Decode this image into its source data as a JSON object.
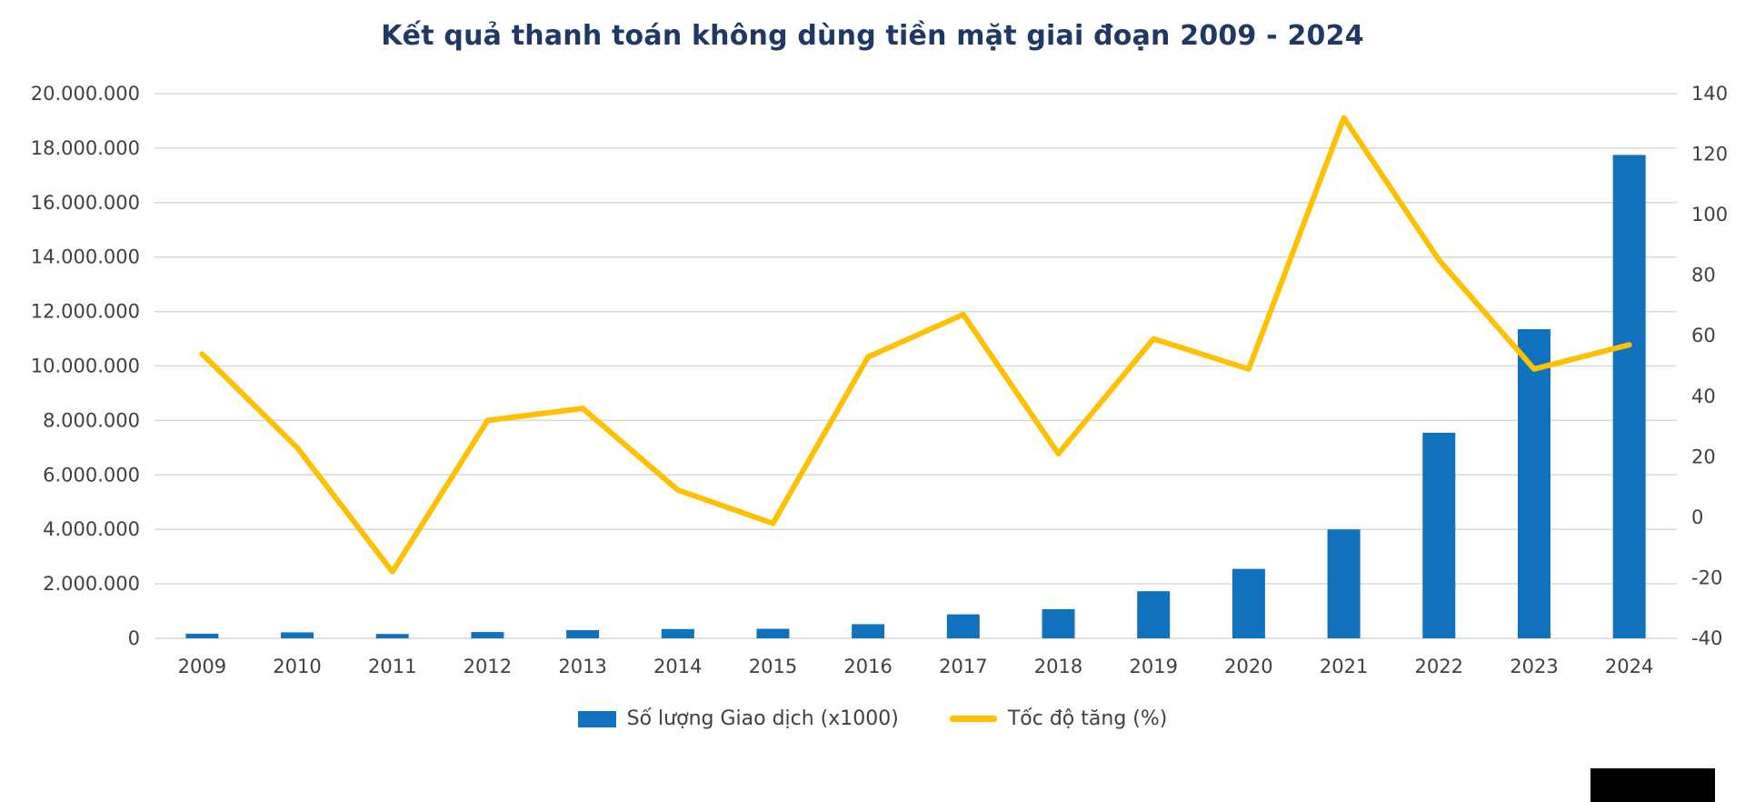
{
  "page": {
    "background_color": "#ffffff"
  },
  "chart": {
    "title": "Kết quả thanh toán không dùng tiền mặt giai đoạn 2009 - 2024",
    "title_color": "#1F3864",
    "bar_color": "#1072BD",
    "line_color": "#FFC000",
    "grid_color": "#D9D9D9",
    "axis_text_color": "#404040",
    "legend": [
      {
        "type": "bar",
        "label": "Số lượng Giao dịch (x1000)"
      },
      {
        "type": "line",
        "label": "Tốc độ tăng (%)"
      }
    ]
  },
  "chart_data": {
    "type": "bar+line",
    "title": "Kết quả thanh toán không dùng tiền mặt giai đoạn 2009 - 2024",
    "xlabel": "",
    "ylabel_left": "Số lượng Giao dịch (x1000)",
    "ylabel_right": "Tốc độ tăng (%)",
    "grid": true,
    "legend_position": "bottom",
    "categories": [
      "2009",
      "2010",
      "2011",
      "2012",
      "2013",
      "2014",
      "2015",
      "2016",
      "2017",
      "2018",
      "2019",
      "2020",
      "2021",
      "2022",
      "2023",
      "2024"
    ],
    "series": [
      {
        "name": "Số lượng Giao dịch (x1000)",
        "type": "bar",
        "axis": "left",
        "values": [
          170000,
          220000,
          160000,
          230000,
          300000,
          340000,
          350000,
          520000,
          880000,
          1070000,
          1730000,
          2550000,
          4000000,
          7550000,
          11350000,
          17750000
        ]
      },
      {
        "name": "Tốc độ tăng (%)",
        "type": "line",
        "axis": "right",
        "values": [
          54,
          23,
          -18,
          32,
          36,
          9,
          -2,
          53,
          67,
          21,
          59,
          49,
          132,
          85,
          49,
          57
        ]
      }
    ],
    "left_axis": {
      "min": 0,
      "max": 20000000,
      "step": 2000000,
      "ticks": [
        {
          "value": 0,
          "label": "0"
        },
        {
          "value": 2000000,
          "label": "2.000.000"
        },
        {
          "value": 4000000,
          "label": "4.000.000"
        },
        {
          "value": 6000000,
          "label": "6.000.000"
        },
        {
          "value": 8000000,
          "label": "8.000.000"
        },
        {
          "value": 10000000,
          "label": "10.000.000"
        },
        {
          "value": 12000000,
          "label": "12.000.000"
        },
        {
          "value": 14000000,
          "label": "14.000.000"
        },
        {
          "value": 16000000,
          "label": "16.000.000"
        },
        {
          "value": 18000000,
          "label": "18.000.000"
        },
        {
          "value": 20000000,
          "label": "20.000.000"
        }
      ]
    },
    "right_axis": {
      "min": -40,
      "max": 140,
      "step": 20,
      "ticks": [
        {
          "value": -40,
          "label": "-40"
        },
        {
          "value": -20,
          "label": "-20"
        },
        {
          "value": 0,
          "label": "0"
        },
        {
          "value": 20,
          "label": "20"
        },
        {
          "value": 40,
          "label": "40"
        },
        {
          "value": 60,
          "label": "60"
        },
        {
          "value": 80,
          "label": "80"
        },
        {
          "value": 100,
          "label": "100"
        },
        {
          "value": 120,
          "label": "120"
        },
        {
          "value": 140,
          "label": "140"
        }
      ]
    }
  }
}
